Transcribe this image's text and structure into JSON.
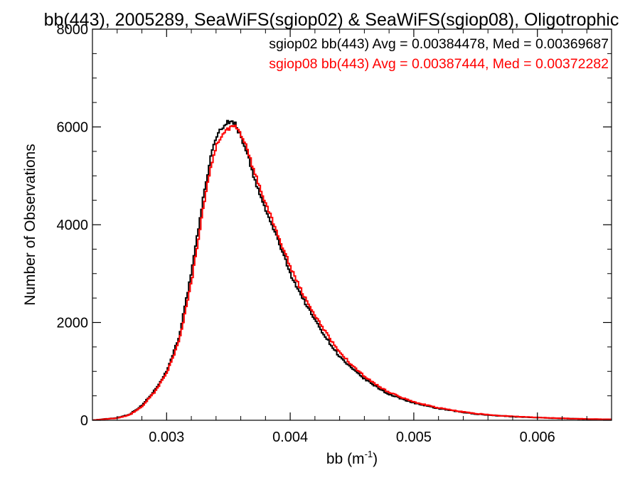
{
  "chart_data": {
    "type": "line",
    "title": "bb(443), 2005289, SeaWiFS(sgiop02) & SeaWiFS(sgiop08), Oligotrophic",
    "xlabel": "bb (m",
    "xlabel_sup": "-1",
    "xlabel_close": ")",
    "ylabel": "Number of Observations",
    "xlim": [
      0.0024,
      0.0066
    ],
    "ylim": [
      0,
      8000
    ],
    "xticks": [
      0.003,
      0.004,
      0.005,
      0.006
    ],
    "xtick_labels": [
      "0.003",
      "0.004",
      "0.005",
      "0.006"
    ],
    "yticks": [
      0,
      2000,
      4000,
      6000,
      8000
    ],
    "ytick_labels": [
      "0",
      "2000",
      "4000",
      "6000",
      "8000"
    ],
    "grid": false,
    "legend_position": "top-right",
    "series": [
      {
        "label": "sgiop02 bb(443) Avg = 0.00384478, Med = 0.00369687",
        "color": "#000000",
        "points": [
          [
            0.0024,
            0
          ],
          [
            0.0026,
            50
          ],
          [
            0.0027,
            120
          ],
          [
            0.0028,
            300
          ],
          [
            0.0029,
            600
          ],
          [
            0.003,
            1000
          ],
          [
            0.0031,
            1700
          ],
          [
            0.0032,
            3000
          ],
          [
            0.00325,
            3800
          ],
          [
            0.0033,
            4600
          ],
          [
            0.00335,
            5300
          ],
          [
            0.0034,
            5800
          ],
          [
            0.00345,
            6000
          ],
          [
            0.0035,
            6100
          ],
          [
            0.00355,
            6100
          ],
          [
            0.0036,
            5800
          ],
          [
            0.00365,
            5500
          ],
          [
            0.0037,
            5000
          ],
          [
            0.0038,
            4300
          ],
          [
            0.0039,
            3700
          ],
          [
            0.004,
            3000
          ],
          [
            0.0041,
            2500
          ],
          [
            0.0042,
            2050
          ],
          [
            0.0043,
            1650
          ],
          [
            0.0044,
            1300
          ],
          [
            0.0045,
            1050
          ],
          [
            0.0046,
            850
          ],
          [
            0.0047,
            680
          ],
          [
            0.0048,
            530
          ],
          [
            0.0049,
            440
          ],
          [
            0.005,
            360
          ],
          [
            0.0051,
            290
          ],
          [
            0.0052,
            240
          ],
          [
            0.0053,
            200
          ],
          [
            0.0054,
            160
          ],
          [
            0.0055,
            130
          ],
          [
            0.0056,
            110
          ],
          [
            0.0057,
            90
          ],
          [
            0.0058,
            75
          ],
          [
            0.0059,
            65
          ],
          [
            0.006,
            55
          ],
          [
            0.0061,
            45
          ],
          [
            0.0062,
            38
          ],
          [
            0.0063,
            30
          ],
          [
            0.0064,
            25
          ],
          [
            0.0065,
            20
          ],
          [
            0.0066,
            18
          ]
        ]
      },
      {
        "label": "sgiop08 bb(443) Avg = 0.00387444, Med = 0.00372282",
        "color": "#ff0000",
        "points": [
          [
            0.0024,
            0
          ],
          [
            0.0026,
            45
          ],
          [
            0.0027,
            110
          ],
          [
            0.0028,
            280
          ],
          [
            0.0029,
            570
          ],
          [
            0.003,
            950
          ],
          [
            0.0031,
            1600
          ],
          [
            0.0032,
            2800
          ],
          [
            0.00325,
            3600
          ],
          [
            0.0033,
            4400
          ],
          [
            0.00335,
            5100
          ],
          [
            0.0034,
            5600
          ],
          [
            0.00345,
            5850
          ],
          [
            0.0035,
            5950
          ],
          [
            0.00355,
            6000
          ],
          [
            0.0036,
            5850
          ],
          [
            0.00365,
            5600
          ],
          [
            0.0037,
            5150
          ],
          [
            0.0038,
            4450
          ],
          [
            0.0039,
            3800
          ],
          [
            0.004,
            3150
          ],
          [
            0.0041,
            2600
          ],
          [
            0.0042,
            2150
          ],
          [
            0.0043,
            1750
          ],
          [
            0.0044,
            1400
          ],
          [
            0.0045,
            1120
          ],
          [
            0.0046,
            900
          ],
          [
            0.0047,
            720
          ],
          [
            0.0048,
            570
          ],
          [
            0.0049,
            470
          ],
          [
            0.005,
            380
          ],
          [
            0.0051,
            310
          ],
          [
            0.0052,
            255
          ],
          [
            0.0053,
            210
          ],
          [
            0.0054,
            170
          ],
          [
            0.0055,
            140
          ],
          [
            0.0056,
            115
          ],
          [
            0.0057,
            95
          ],
          [
            0.0058,
            80
          ],
          [
            0.0059,
            68
          ],
          [
            0.006,
            58
          ],
          [
            0.0061,
            48
          ],
          [
            0.0062,
            40
          ],
          [
            0.0063,
            32
          ],
          [
            0.0064,
            27
          ],
          [
            0.0065,
            22
          ],
          [
            0.0066,
            19
          ]
        ]
      }
    ]
  }
}
